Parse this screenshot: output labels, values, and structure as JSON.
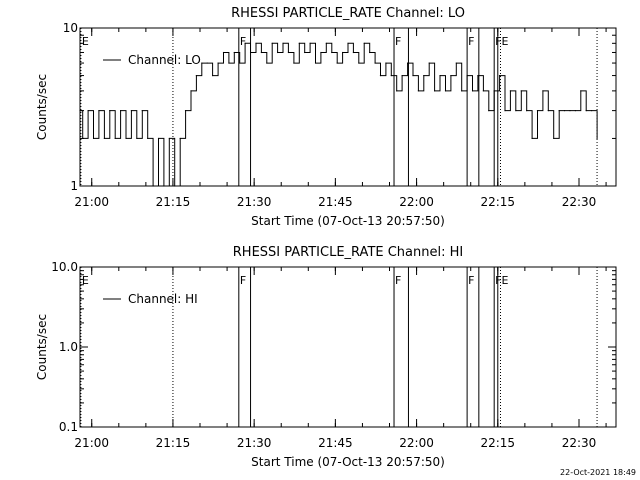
{
  "chart_data": [
    {
      "type": "line",
      "title": "RHESSI PARTICLE_RATE Channel: LO",
      "xlabel": "Start Time (07-Oct-13 20:57:50)",
      "ylabel": "Counts/sec",
      "y_scale": "log",
      "ylim": [
        1,
        10
      ],
      "yticks": [
        "1",
        "10"
      ],
      "xlim": [
        "20:57:50",
        "22:36:50"
      ],
      "xticks": [
        "21:00",
        "21:15",
        "21:30",
        "21:45",
        "22:00",
        "22:15",
        "22:30"
      ],
      "grid": false,
      "legend": {
        "placement": "top-left",
        "entries": [
          "Channel: LO"
        ]
      },
      "series": [
        {
          "name": "Channel: LO",
          "x": [
            "20:57:50",
            "20:58:20",
            "20:59:20",
            "21:00:20",
            "21:01:20",
            "21:02:20",
            "21:03:20",
            "21:04:20",
            "21:05:20",
            "21:06:20",
            "21:07:20",
            "21:08:20",
            "21:09:20",
            "21:10:20",
            "21:11:20",
            "21:12:20",
            "21:13:20",
            "21:14:20",
            "21:15:20",
            "21:16:20",
            "21:17:20",
            "21:18:20",
            "21:19:20",
            "21:20:20",
            "21:21:20",
            "21:22:20",
            "21:23:20",
            "21:24:20",
            "21:25:20",
            "21:26:20",
            "21:27:20",
            "21:28:20",
            "21:29:20",
            "21:30:20",
            "21:31:20",
            "21:32:20",
            "21:33:20",
            "21:34:20",
            "21:35:20",
            "21:36:20",
            "21:37:20",
            "21:38:20",
            "21:39:20",
            "21:40:20",
            "21:41:20",
            "21:42:20",
            "21:43:20",
            "21:44:20",
            "21:45:20",
            "21:46:20",
            "21:47:20",
            "21:48:20",
            "21:49:20",
            "21:50:20",
            "21:51:20",
            "21:52:20",
            "21:53:20",
            "21:54:20",
            "21:55:20",
            "21:56:20",
            "21:57:20",
            "21:58:20",
            "21:59:20",
            "22:00:20",
            "22:01:20",
            "22:02:20",
            "22:03:20",
            "22:04:20",
            "22:05:20",
            "22:06:20",
            "22:07:20",
            "22:08:20",
            "22:09:20",
            "22:10:20",
            "22:11:20",
            "22:12:20",
            "22:13:20",
            "22:14:20",
            "22:15:20",
            "22:16:20",
            "22:17:20",
            "22:18:20",
            "22:19:20",
            "22:20:20",
            "22:21:20",
            "22:22:20",
            "22:23:20",
            "22:24:20",
            "22:25:20",
            "22:26:20",
            "22:27:20",
            "22:28:20",
            "22:29:20",
            "22:30:20",
            "22:31:20",
            "22:32:20",
            "22:33:20"
          ],
          "values": [
            3,
            2,
            3,
            2,
            3,
            2,
            3,
            2,
            3,
            2,
            3,
            2,
            3,
            2,
            1,
            2,
            1,
            2,
            1,
            2,
            3,
            4,
            5,
            6,
            6,
            5,
            6,
            7,
            6,
            7,
            6,
            8,
            7,
            8,
            7,
            6,
            8,
            7,
            8,
            7,
            6,
            8,
            7,
            8,
            6,
            7,
            8,
            7,
            6,
            7,
            8,
            7,
            6,
            8,
            7,
            6,
            5,
            6,
            5,
            4,
            5,
            6,
            5,
            4,
            5,
            6,
            4,
            5,
            4,
            5,
            6,
            4,
            5,
            4,
            5,
            4,
            3,
            4,
            5,
            3,
            4,
            3,
            4,
            3,
            2,
            3,
            4,
            3,
            2,
            3,
            3,
            3,
            3,
            4,
            3,
            3,
            2
          ]
        }
      ],
      "markers": [
        {
          "time": "20:58:00",
          "style": "dotted",
          "label": "E"
        },
        {
          "time": "21:15:00",
          "style": "dotted",
          "label": ""
        },
        {
          "time": "21:27:10",
          "style": "solid",
          "label": "F"
        },
        {
          "time": "21:29:20",
          "style": "solid",
          "label": ""
        },
        {
          "time": "21:55:50",
          "style": "solid",
          "label": "F"
        },
        {
          "time": "21:58:30",
          "style": "solid",
          "label": ""
        },
        {
          "time": "22:09:20",
          "style": "solid",
          "label": "F"
        },
        {
          "time": "22:11:30",
          "style": "solid",
          "label": ""
        },
        {
          "time": "22:14:20",
          "style": "solid",
          "label": "F"
        },
        {
          "time": "22:15:00",
          "style": "solid",
          "label": ""
        },
        {
          "time": "22:15:30",
          "style": "dotted",
          "label": "E"
        },
        {
          "time": "22:33:20",
          "style": "dotted",
          "label": ""
        }
      ]
    },
    {
      "type": "line",
      "title": "RHESSI PARTICLE_RATE Channel: HI",
      "xlabel": "Start Time (07-Oct-13 20:57:50)",
      "ylabel": "Counts/sec",
      "y_scale": "log",
      "ylim": [
        0.1,
        10
      ],
      "yticks": [
        "0.1",
        "1.0",
        "10.0"
      ],
      "xlim": [
        "20:57:50",
        "22:36:50"
      ],
      "xticks": [
        "21:00",
        "21:15",
        "21:30",
        "21:45",
        "22:00",
        "22:15",
        "22:30"
      ],
      "grid": false,
      "legend": {
        "placement": "top-left",
        "entries": [
          "Channel: HI"
        ]
      },
      "series": [
        {
          "name": "Channel: HI",
          "x": [],
          "values": []
        }
      ],
      "markers": [
        {
          "time": "20:58:00",
          "style": "dotted",
          "label": "E"
        },
        {
          "time": "21:15:00",
          "style": "dotted",
          "label": ""
        },
        {
          "time": "21:27:10",
          "style": "solid",
          "label": "F"
        },
        {
          "time": "21:29:20",
          "style": "solid",
          "label": ""
        },
        {
          "time": "21:55:50",
          "style": "solid",
          "label": "F"
        },
        {
          "time": "21:58:30",
          "style": "solid",
          "label": ""
        },
        {
          "time": "22:09:20",
          "style": "solid",
          "label": "F"
        },
        {
          "time": "22:11:30",
          "style": "solid",
          "label": ""
        },
        {
          "time": "22:14:20",
          "style": "solid",
          "label": "F"
        },
        {
          "time": "22:15:00",
          "style": "solid",
          "label": ""
        },
        {
          "time": "22:15:30",
          "style": "dotted",
          "label": "E"
        },
        {
          "time": "22:33:20",
          "style": "dotted",
          "label": ""
        }
      ]
    }
  ],
  "timestamp": "22-Oct-2021 18:49"
}
